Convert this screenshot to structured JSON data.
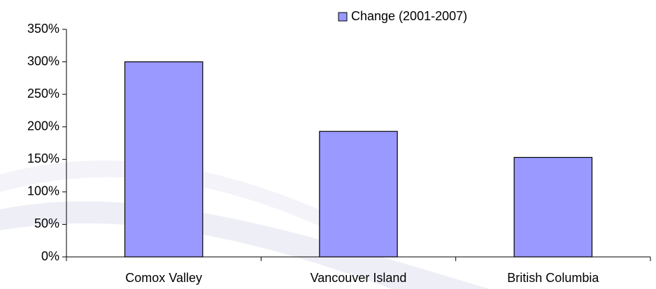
{
  "chart_data": {
    "type": "bar",
    "categories": [
      "Comox Valley",
      "Vancouver Island",
      "British Columbia"
    ],
    "series": [
      {
        "name": "Change (2001-2007)",
        "color": "#9999ff",
        "values": [
          300,
          193,
          153
        ]
      }
    ],
    "ylim": [
      0,
      350
    ],
    "yticks": [
      {
        "value": 0,
        "label": "0%"
      },
      {
        "value": 50,
        "label": "50%"
      },
      {
        "value": 100,
        "label": "100%"
      },
      {
        "value": 150,
        "label": "150%"
      },
      {
        "value": 200,
        "label": "200%"
      },
      {
        "value": 250,
        "label": "250%"
      },
      {
        "value": 300,
        "label": "300%"
      },
      {
        "value": 350,
        "label": "350%"
      }
    ],
    "legend": "top-right"
  }
}
